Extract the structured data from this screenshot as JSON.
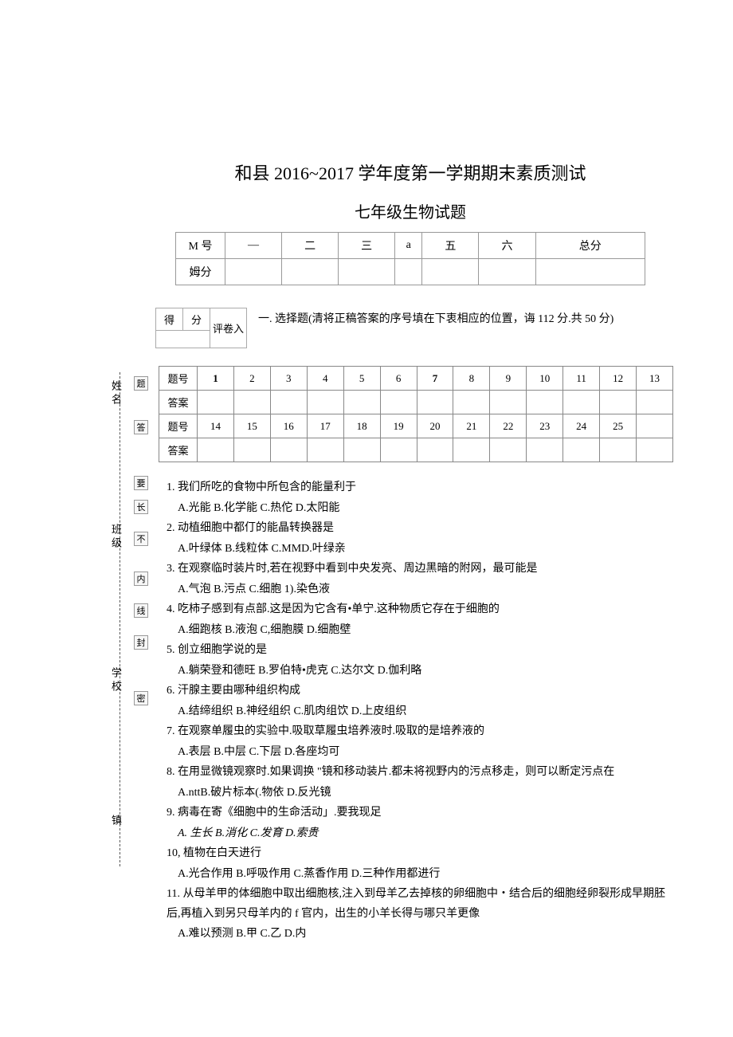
{
  "header": {
    "main_title": "和县 2016~2017 学年度第一学期期末素质测试",
    "sub_title": "七年级生物试题"
  },
  "score_table": {
    "row1_label": "M 号",
    "row2_label": "姆分",
    "cols": [
      "—",
      "二",
      "三",
      "a",
      "五",
      "六",
      "总分"
    ]
  },
  "score_box": {
    "c1": "得",
    "c2": "分",
    "label2": "评卷入"
  },
  "section1": {
    "prefix": "一.",
    "text": "选择题(清将正稿答案的序号填在下衷相应的位置，诲 112 分.共 50 分)"
  },
  "answer_grid": {
    "label_q": "题号",
    "label_a": "答案",
    "row1_nums": [
      "1",
      "2",
      "3",
      "4",
      "5",
      "6",
      "7",
      "8",
      "9",
      "10",
      "11",
      "12",
      "13"
    ],
    "row2_nums": [
      "14",
      "15",
      "16",
      "17",
      "18",
      "19",
      "20",
      "21",
      "22",
      "23",
      "24",
      "25",
      ""
    ]
  },
  "questions": [
    {
      "n": "1.",
      "t": "我们所吃的食物中所包含的能量利于",
      "o": "A.光能 B.化学能 C.热佗 D.太阳能"
    },
    {
      "n": "2.",
      "t": "动植细胞中都仃的能晶转换器是",
      "o": "A.叶绿体 B.线粒体 C.MMD.叶绿亲"
    },
    {
      "n": "3.",
      "t": "在观察临时装片时,若在视野中看到中央发亮、周边黑暗的附网，最可能是",
      "o": "A.气泡 B.污点 C.细胞 1).染色液"
    },
    {
      "n": "4.",
      "t": "吃柿子感到有点部.这是因为它含有•单宁.这种物质它存在于细胞的",
      "o": "A.细跑核 B.液泡 C,细胞膜 D.细胞壁"
    },
    {
      "n": "5.",
      "t": "创立细胞学说的是",
      "o": "A.躺荣登和德旺 B.罗伯特•虎克 C.达尔文 D.伽利略"
    },
    {
      "n": "6.",
      "t": "汗腺主要由哪种组织构成",
      "o": "A.结缔组织 B.神经组织 C.肌肉组饮 D.上皮组织"
    },
    {
      "n": "7.",
      "t": "在观察单履虫的实验中.吸取草履虫培养液时.吸取的是培养液的",
      "o": "A.表层 B.中层 C.下层 D.各座均可"
    },
    {
      "n": "8.",
      "t": "在用显微镜观察时.如果调换 \"镜和移动装片.都未将视野内的污点移走，则可以断定污点在",
      "o": "A.nttB.破片标本(.物依 D.反光镜"
    },
    {
      "n": "9.",
      "t": "病毒在寄《细胞中的生命活动」.要我现足",
      "o": "A. 生长 B.消化 C.发育 D.索贵",
      "oi": true
    },
    {
      "n": "10,",
      "t": "植物在白天进行",
      "o": "A.光合作用 B.呼吸作用 C.蒸香作用 D.三种作用都进行"
    },
    {
      "n": "11.",
      "t": "从母羊甲的体细胞中取出细胞核,注入到母羊乙去掉核的卵细胞中・结合后的细胞经卵裂形成早期胚后,再植入到另只母羊内的 f 官内，出生的小羊长得与哪只羊更像",
      "o": "A.难以预测 B.甲 C.乙 D.内"
    }
  ],
  "sidebar": {
    "labels": [
      "姓名",
      "班级",
      "学校",
      "镇"
    ],
    "boxes": [
      "题",
      "答",
      "要",
      "长",
      "不",
      "内",
      "线",
      "封",
      "密"
    ]
  }
}
